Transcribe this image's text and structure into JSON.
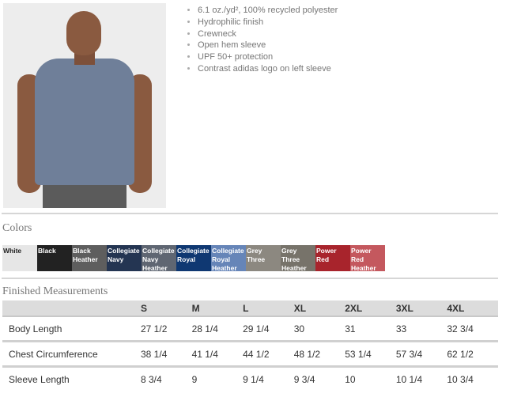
{
  "product": {
    "features": [
      "6.1 oz./yd², 100% recycled polyester",
      "Hydrophilic finish",
      "Crewneck",
      "Open hem sleeve",
      "UPF 50+ protection",
      "Contrast adidas logo on left sleeve"
    ]
  },
  "colors": {
    "heading": "Colors",
    "swatches": [
      {
        "name": "White",
        "hex": "#e6e6e6",
        "text": "#222"
      },
      {
        "name": "Black",
        "hex": "#222222",
        "text": "#fff"
      },
      {
        "name": "Black Heather",
        "hex": "#5e5e5e",
        "text": "#fff"
      },
      {
        "name": "Collegiate Navy",
        "hex": "#243552",
        "text": "#fff"
      },
      {
        "name": "Collegiate Navy Heather",
        "hex": "#5f6672",
        "text": "#fff"
      },
      {
        "name": "Collegiate Royal",
        "hex": "#0f3872",
        "text": "#fff"
      },
      {
        "name": "Collegiate Royal Heather",
        "hex": "#6685b8",
        "text": "#fff"
      },
      {
        "name": "Grey Three",
        "hex": "#8c8880",
        "text": "#fff"
      },
      {
        "name": "Grey Three Heather",
        "hex": "#77736a",
        "text": "#fff"
      },
      {
        "name": "Power Red",
        "hex": "#a8242c",
        "text": "#fff"
      },
      {
        "name": "Power Red Heather",
        "hex": "#c4585e",
        "text": "#fff"
      }
    ]
  },
  "measurements": {
    "heading": "Finished Measurements",
    "sizes": [
      "S",
      "M",
      "L",
      "XL",
      "2XL",
      "3XL",
      "4XL"
    ],
    "rows": [
      {
        "label": "Body Length",
        "values": [
          "27 1/2",
          "28 1/4",
          "29 1/4",
          "30",
          "31",
          "33",
          "32 3/4"
        ]
      },
      {
        "label": "Chest Circumference",
        "values": [
          "38 1/4",
          "41 1/4",
          "44 1/2",
          "48 1/2",
          "53 1/4",
          "57 3/4",
          "62 1/2"
        ]
      },
      {
        "label": "Sleeve Length",
        "values": [
          "8 3/4",
          "9",
          "9 1/4",
          "9 3/4",
          "10",
          "10 1/4",
          "10 3/4"
        ]
      }
    ]
  }
}
